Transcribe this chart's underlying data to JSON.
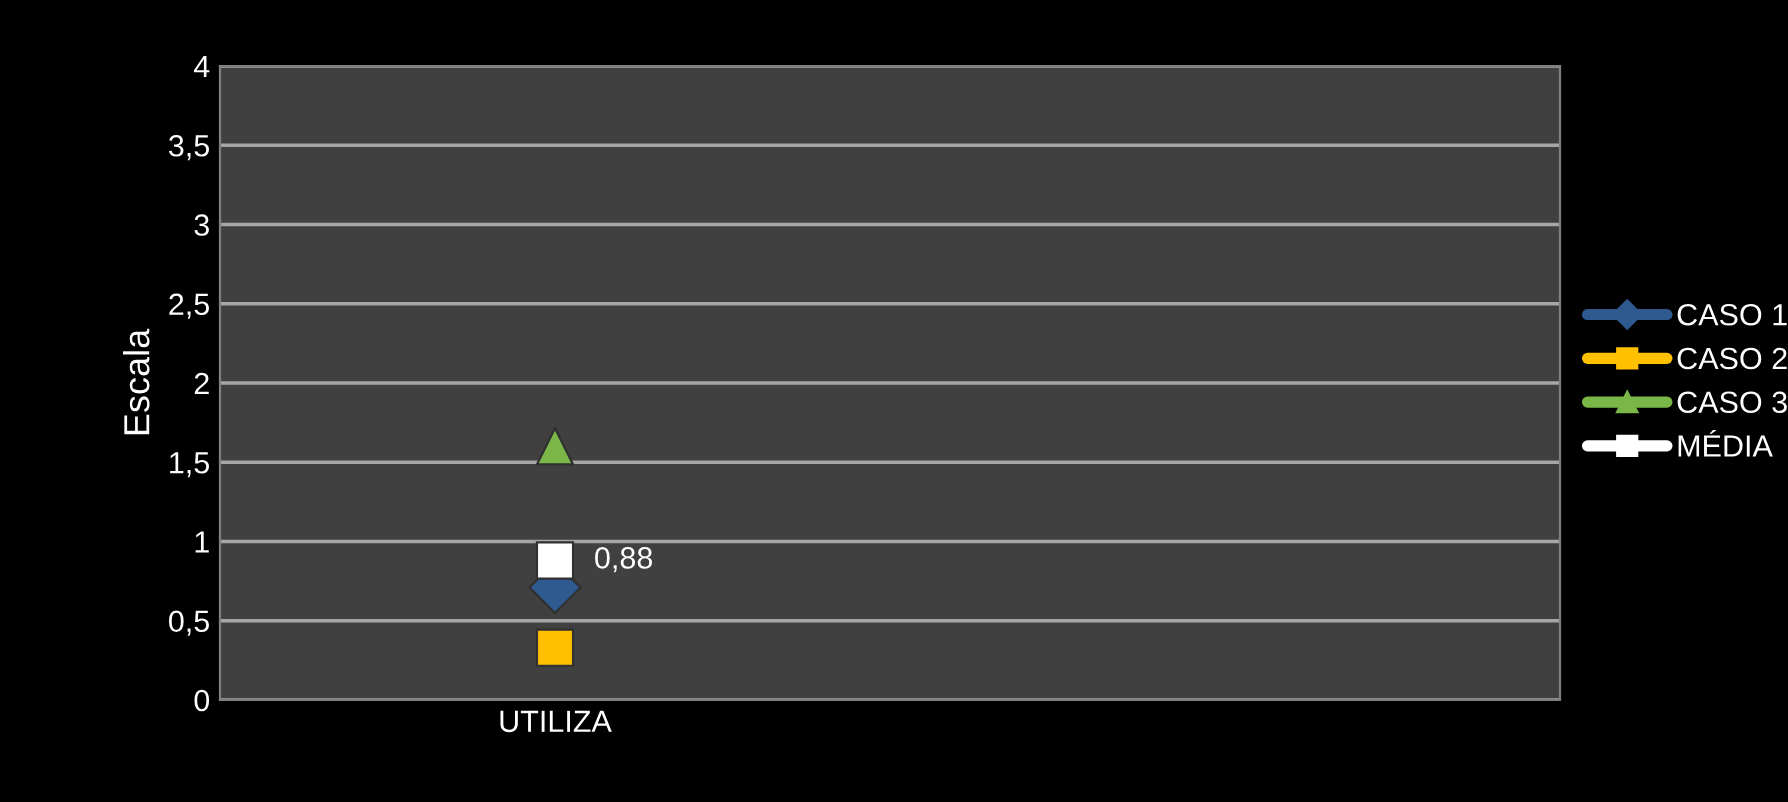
{
  "chart_data": {
    "type": "line",
    "ylabel": "Escala",
    "categories": [
      "UTILIZA",
      null
    ],
    "ylim": [
      0,
      4
    ],
    "yticks": [
      0,
      {
        "value": 0.5,
        "label": "0,5"
      },
      1,
      {
        "value": 1.5,
        "label": "1,5"
      },
      2,
      {
        "value": 2.5,
        "label": "2,5"
      },
      3,
      {
        "value": 3.5,
        "label": "3,5"
      },
      4
    ],
    "grid": "y",
    "legend": "right",
    "series": [
      {
        "name": "CASO 1",
        "color": "#2f5a8f",
        "marker": "diamond",
        "values": [
          0.71,
          null
        ]
      },
      {
        "name": "CASO 2",
        "color": "#ffc000",
        "marker": "square",
        "values": [
          0.33,
          null
        ]
      },
      {
        "name": "CASO 3",
        "color": "#7ab648",
        "marker": "triangle",
        "values": [
          1.6,
          null
        ]
      },
      {
        "name": "MÉDIA",
        "color": "#ffffff",
        "marker": "square",
        "values": [
          0.88,
          null
        ],
        "value_labels": [
          "0,88",
          null
        ]
      }
    ]
  }
}
